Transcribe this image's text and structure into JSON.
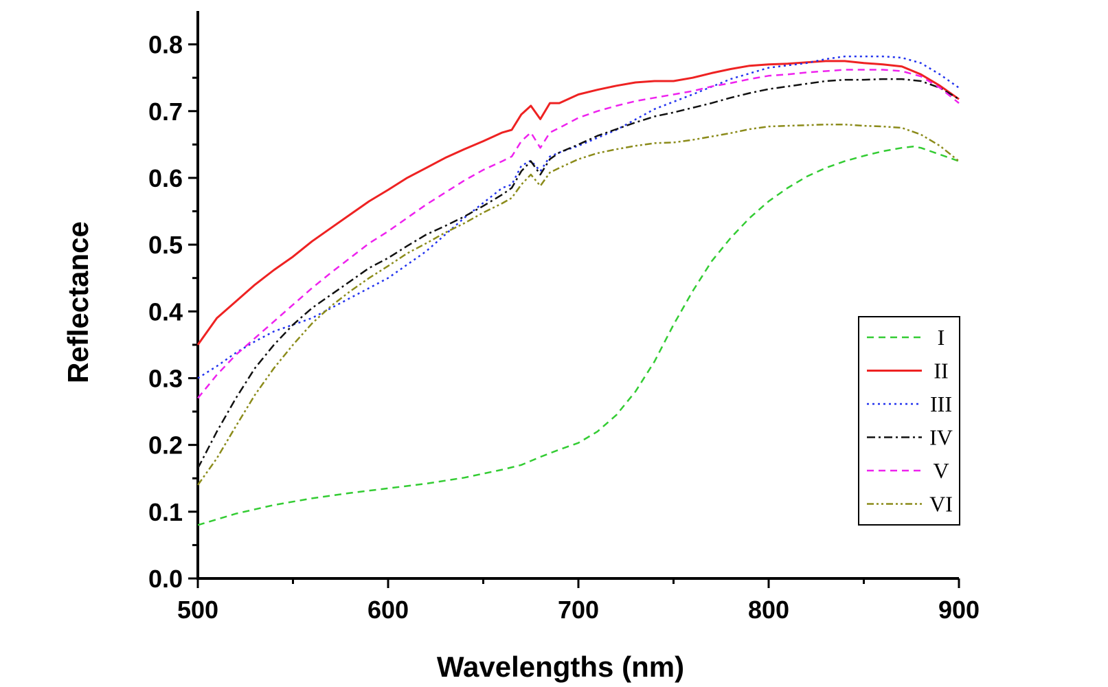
{
  "chart_data": {
    "type": "line",
    "title": "",
    "xlabel": "Wavelengths (nm)",
    "ylabel": "Reflectance",
    "xlim": [
      500,
      900
    ],
    "ylim": [
      0.0,
      0.85
    ],
    "xticks": [
      500,
      600,
      700,
      800,
      900
    ],
    "xtick_labels": [
      "500",
      "600",
      "700",
      "800",
      "900"
    ],
    "yticks": [
      0.0,
      0.1,
      0.2,
      0.3,
      0.4,
      0.5,
      0.6,
      0.7,
      0.8
    ],
    "ytick_labels": [
      "0.0",
      "0.1",
      "0.2",
      "0.3",
      "0.4",
      "0.5",
      "0.6",
      "0.7",
      "0.8"
    ],
    "grid": false,
    "legend_position": "right",
    "series": [
      {
        "name": "I",
        "color": "#33cc33",
        "dash": "dashed",
        "x": [
          500,
          520,
          540,
          560,
          580,
          600,
          620,
          640,
          660,
          670,
          680,
          690,
          700,
          710,
          720,
          730,
          740,
          750,
          760,
          770,
          780,
          790,
          800,
          810,
          820,
          830,
          840,
          850,
          860,
          870,
          876,
          880,
          890,
          900
        ],
        "y": [
          0.08,
          0.097,
          0.11,
          0.12,
          0.128,
          0.135,
          0.142,
          0.151,
          0.163,
          0.17,
          0.182,
          0.193,
          0.203,
          0.22,
          0.245,
          0.28,
          0.325,
          0.38,
          0.43,
          0.475,
          0.51,
          0.54,
          0.565,
          0.585,
          0.602,
          0.615,
          0.625,
          0.633,
          0.64,
          0.645,
          0.647,
          0.645,
          0.635,
          0.625
        ]
      },
      {
        "name": "II",
        "color": "#ee2222",
        "dash": "solid",
        "x": [
          500,
          510,
          520,
          530,
          540,
          550,
          560,
          570,
          580,
          590,
          600,
          610,
          620,
          630,
          640,
          650,
          660,
          665,
          670,
          675,
          680,
          685,
          690,
          700,
          710,
          720,
          730,
          740,
          750,
          760,
          770,
          780,
          790,
          800,
          810,
          820,
          830,
          840,
          850,
          860,
          870,
          880,
          890,
          900
        ],
        "y": [
          0.35,
          0.39,
          0.415,
          0.44,
          0.462,
          0.482,
          0.505,
          0.525,
          0.545,
          0.565,
          0.582,
          0.6,
          0.615,
          0.63,
          0.643,
          0.655,
          0.668,
          0.672,
          0.695,
          0.708,
          0.688,
          0.712,
          0.712,
          0.725,
          0.732,
          0.738,
          0.743,
          0.745,
          0.745,
          0.75,
          0.757,
          0.763,
          0.768,
          0.77,
          0.771,
          0.773,
          0.775,
          0.775,
          0.772,
          0.77,
          0.767,
          0.755,
          0.738,
          0.718
        ]
      },
      {
        "name": "III",
        "color": "#2233ee",
        "dash": "dotted",
        "x": [
          500,
          510,
          520,
          530,
          540,
          560,
          580,
          600,
          620,
          640,
          660,
          665,
          670,
          675,
          680,
          685,
          690,
          700,
          720,
          740,
          760,
          780,
          800,
          820,
          830,
          840,
          850,
          860,
          870,
          880,
          890,
          900
        ],
        "y": [
          0.3,
          0.318,
          0.338,
          0.355,
          0.37,
          0.39,
          0.42,
          0.45,
          0.49,
          0.54,
          0.585,
          0.59,
          0.618,
          0.626,
          0.61,
          0.632,
          0.638,
          0.648,
          0.672,
          0.703,
          0.725,
          0.748,
          0.765,
          0.772,
          0.778,
          0.782,
          0.782,
          0.782,
          0.78,
          0.772,
          0.755,
          0.735
        ]
      },
      {
        "name": "IV",
        "color": "#111111",
        "dash": "dashdot",
        "x": [
          500,
          510,
          520,
          530,
          540,
          550,
          560,
          570,
          580,
          590,
          600,
          610,
          620,
          630,
          640,
          650,
          660,
          665,
          670,
          675,
          680,
          685,
          690,
          700,
          710,
          720,
          730,
          740,
          750,
          760,
          770,
          780,
          790,
          800,
          810,
          820,
          830,
          840,
          850,
          860,
          870,
          880,
          890,
          900
        ],
        "y": [
          0.165,
          0.22,
          0.27,
          0.315,
          0.35,
          0.38,
          0.405,
          0.425,
          0.445,
          0.465,
          0.48,
          0.498,
          0.515,
          0.528,
          0.542,
          0.558,
          0.575,
          0.585,
          0.61,
          0.625,
          0.605,
          0.628,
          0.638,
          0.65,
          0.663,
          0.673,
          0.683,
          0.692,
          0.698,
          0.705,
          0.712,
          0.72,
          0.727,
          0.733,
          0.737,
          0.741,
          0.745,
          0.747,
          0.747,
          0.748,
          0.748,
          0.745,
          0.735,
          0.718
        ]
      },
      {
        "name": "V",
        "color": "#ee22ee",
        "dash": "dashed",
        "x": [
          500,
          510,
          520,
          530,
          540,
          550,
          560,
          570,
          580,
          590,
          600,
          610,
          620,
          630,
          640,
          650,
          660,
          665,
          670,
          675,
          680,
          685,
          690,
          700,
          710,
          720,
          730,
          740,
          750,
          760,
          770,
          780,
          790,
          800,
          810,
          820,
          830,
          840,
          850,
          860,
          870,
          880,
          890,
          900
        ],
        "y": [
          0.27,
          0.305,
          0.335,
          0.36,
          0.385,
          0.41,
          0.435,
          0.458,
          0.48,
          0.502,
          0.52,
          0.54,
          0.56,
          0.578,
          0.596,
          0.612,
          0.625,
          0.632,
          0.655,
          0.668,
          0.645,
          0.668,
          0.675,
          0.69,
          0.7,
          0.708,
          0.715,
          0.72,
          0.725,
          0.73,
          0.737,
          0.742,
          0.748,
          0.753,
          0.755,
          0.758,
          0.76,
          0.762,
          0.762,
          0.762,
          0.76,
          0.752,
          0.735,
          0.712
        ]
      },
      {
        "name": "VI",
        "color": "#8b8b1a",
        "dash": "dashdotdot",
        "x": [
          500,
          510,
          520,
          530,
          540,
          550,
          560,
          570,
          580,
          590,
          600,
          610,
          620,
          630,
          640,
          650,
          660,
          665,
          670,
          675,
          680,
          685,
          690,
          700,
          710,
          720,
          730,
          740,
          750,
          760,
          770,
          780,
          790,
          800,
          810,
          820,
          830,
          840,
          850,
          860,
          870,
          880,
          890,
          900
        ],
        "y": [
          0.14,
          0.18,
          0.228,
          0.275,
          0.315,
          0.35,
          0.382,
          0.408,
          0.43,
          0.45,
          0.468,
          0.487,
          0.502,
          0.518,
          0.532,
          0.548,
          0.562,
          0.57,
          0.59,
          0.605,
          0.588,
          0.608,
          0.615,
          0.628,
          0.637,
          0.643,
          0.648,
          0.652,
          0.653,
          0.657,
          0.662,
          0.667,
          0.673,
          0.677,
          0.678,
          0.679,
          0.68,
          0.68,
          0.678,
          0.677,
          0.675,
          0.665,
          0.648,
          0.625
        ]
      }
    ]
  }
}
